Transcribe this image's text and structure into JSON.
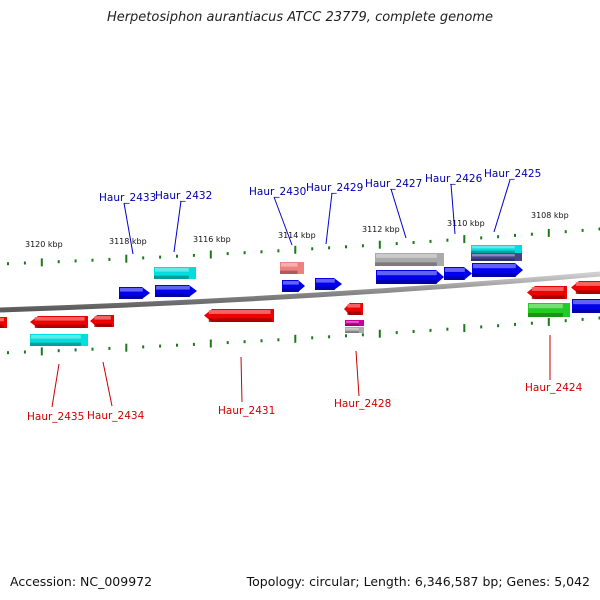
{
  "title": "Herpetosiphon aurantiacus ATCC 23779, complete genome",
  "footer": {
    "accession": "Accession: NC_009972",
    "summary": "Topology: circular; Length: 6,346,587 bp; Genes: 5,042"
  },
  "colors": {
    "backbone": "#888888",
    "tick": "#1a7a1a",
    "forward_label": "#0000aa",
    "reverse_label": "#cc0000",
    "blue": "#0000ee",
    "red": "#ee0000",
    "cyan": "#00dddd",
    "green": "#22cc22",
    "magenta": "#cc0099",
    "salmon": "#ee8080",
    "gray": "#aaaaaa",
    "slate": "#444488"
  },
  "ticks": [
    {
      "label": "3120 kbp"
    },
    {
      "label": "3118 kbp"
    },
    {
      "label": "3116 kbp"
    },
    {
      "label": "3114 kbp"
    },
    {
      "label": "3112 kbp"
    },
    {
      "label": "3110 kbp"
    },
    {
      "label": "3108 kbp"
    }
  ],
  "genes": [
    {
      "name": "Haur_2435",
      "strand": "reverse"
    },
    {
      "name": "Haur_2434",
      "strand": "reverse"
    },
    {
      "name": "Haur_2433",
      "strand": "forward"
    },
    {
      "name": "Haur_2432",
      "strand": "forward"
    },
    {
      "name": "Haur_2431",
      "strand": "reverse"
    },
    {
      "name": "Haur_2430",
      "strand": "forward"
    },
    {
      "name": "Haur_2429",
      "strand": "forward"
    },
    {
      "name": "Haur_2428",
      "strand": "reverse"
    },
    {
      "name": "Haur_2427",
      "strand": "forward"
    },
    {
      "name": "Haur_2426",
      "strand": "forward"
    },
    {
      "name": "Haur_2425",
      "strand": "forward"
    },
    {
      "name": "Haur_2424",
      "strand": "reverse"
    }
  ]
}
